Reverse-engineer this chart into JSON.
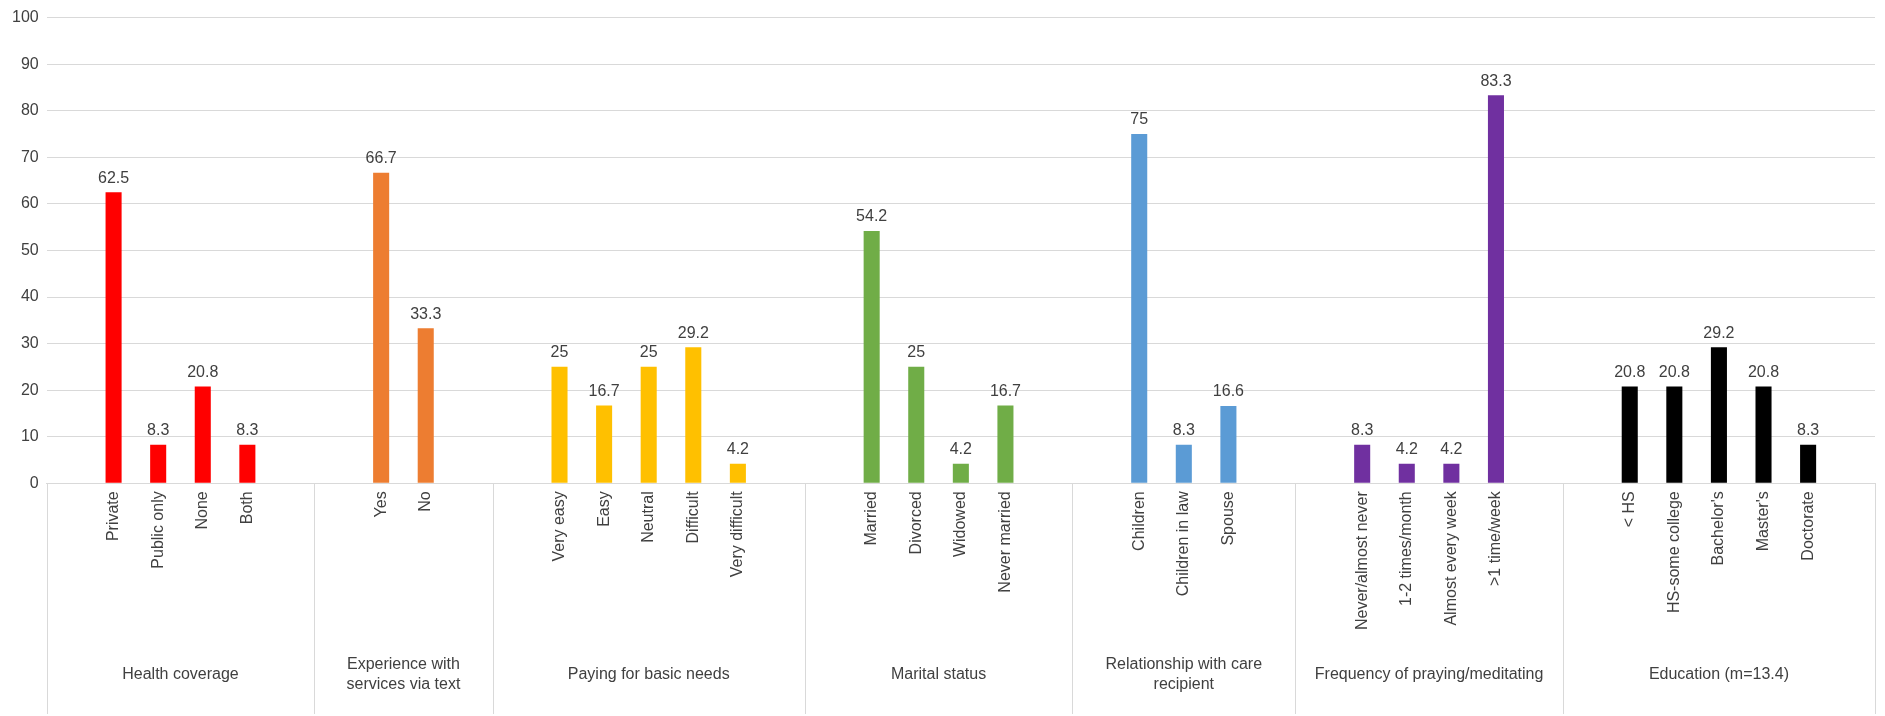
{
  "chart_data": {
    "type": "bar",
    "categories": [
      null,
      "Private",
      "Public only",
      "None",
      "Both",
      null,
      null,
      "Yes",
      "No",
      null,
      null,
      "Very easy",
      "Easy",
      "Neutral",
      "Difficult",
      "Very difficult",
      null,
      null,
      "Married",
      "Divorced",
      "Widowed",
      "Never married",
      null,
      null,
      "Children",
      "Children in law",
      "Spouse",
      null,
      null,
      "Never/almost never",
      "1-2 times/month",
      "Almost every week",
      ">1 time/week",
      null,
      null,
      "< HS",
      "HS-some college",
      "Bachelor's",
      "Master's",
      "Doctorate",
      null
    ],
    "series": [
      {
        "color": "#ff0000",
        "values": [
          null,
          62.5,
          8.3,
          20.8,
          8.3,
          null,
          null,
          null,
          null,
          null,
          null,
          null,
          null,
          null,
          null,
          null,
          null,
          null,
          null,
          null,
          null,
          null,
          null,
          null,
          null,
          null,
          null,
          null,
          null,
          null,
          null,
          null,
          null,
          null,
          null,
          null,
          null,
          null,
          null,
          null,
          null
        ]
      },
      {
        "color": "#ed7d31",
        "values": [
          null,
          null,
          null,
          null,
          null,
          null,
          null,
          66.7,
          33.3,
          null,
          null,
          null,
          null,
          null,
          null,
          null,
          null,
          null,
          null,
          null,
          null,
          null,
          null,
          null,
          null,
          null,
          null,
          null,
          null,
          null,
          null,
          null,
          null,
          null,
          null,
          null,
          null,
          null,
          null,
          null,
          null
        ]
      },
      {
        "color": "#ffc000",
        "values": [
          null,
          null,
          null,
          null,
          null,
          null,
          null,
          null,
          null,
          null,
          null,
          25,
          16.7,
          25,
          29.2,
          4.2,
          null,
          null,
          null,
          null,
          null,
          null,
          null,
          null,
          null,
          null,
          null,
          null,
          null,
          null,
          null,
          null,
          null,
          null,
          null,
          null,
          null,
          null,
          null,
          null,
          null
        ]
      },
      {
        "color": "#70ad47",
        "values": [
          null,
          null,
          null,
          null,
          null,
          null,
          null,
          null,
          null,
          null,
          null,
          null,
          null,
          null,
          null,
          null,
          null,
          null,
          54.2,
          25,
          4.2,
          16.7,
          null,
          null,
          null,
          null,
          null,
          null,
          null,
          null,
          null,
          null,
          null,
          null,
          null,
          null,
          null,
          null,
          null,
          null,
          null
        ]
      },
      {
        "color": "#5b9bd5",
        "values": [
          null,
          null,
          null,
          null,
          null,
          null,
          null,
          null,
          null,
          null,
          null,
          null,
          null,
          null,
          null,
          null,
          null,
          null,
          null,
          null,
          null,
          null,
          null,
          null,
          75,
          8.3,
          16.6,
          null,
          null,
          null,
          null,
          null,
          null,
          null,
          null,
          null,
          null,
          null,
          null,
          null,
          null
        ]
      },
      {
        "color": "#7030a0",
        "values": [
          null,
          null,
          null,
          null,
          null,
          null,
          null,
          null,
          null,
          null,
          null,
          null,
          null,
          null,
          null,
          null,
          null,
          null,
          null,
          null,
          null,
          null,
          null,
          null,
          null,
          null,
          null,
          null,
          null,
          8.3,
          4.2,
          4.2,
          83.3,
          null,
          null,
          null,
          null,
          null,
          null,
          null,
          null
        ]
      },
      {
        "color": "#000000",
        "values": [
          null,
          null,
          null,
          null,
          null,
          null,
          null,
          null,
          null,
          null,
          null,
          null,
          null,
          null,
          null,
          null,
          null,
          null,
          null,
          null,
          null,
          null,
          null,
          null,
          null,
          null,
          null,
          null,
          null,
          null,
          null,
          null,
          null,
          null,
          null,
          20.8,
          20.8,
          29.2,
          20.8,
          8.3,
          null
        ]
      }
    ],
    "ylim": [
      0,
      100
    ],
    "yticks": [
      0,
      10,
      20,
      30,
      40,
      50,
      60,
      70,
      80,
      90,
      100
    ],
    "annotations": [
      "Health coverage",
      "Experience with services via text",
      "Paying for basic needs",
      "Marital status",
      "Relationship with care recipient",
      "Frequency of praying/meditating",
      "Education (m=13.4)"
    ],
    "grid": "y",
    "legend": false,
    "data_labels": true
  }
}
